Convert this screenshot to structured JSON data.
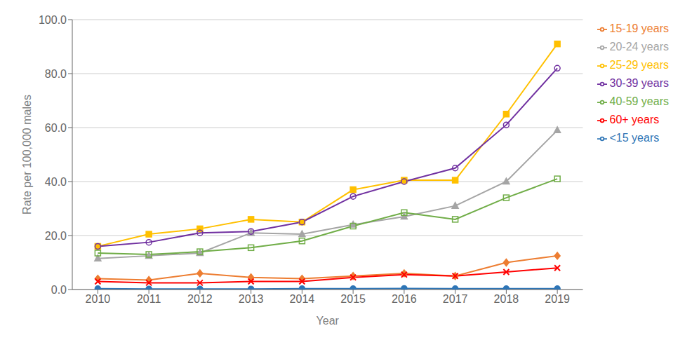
{
  "chart_data": {
    "type": "line",
    "x": [
      2010,
      2011,
      2012,
      2013,
      2014,
      2015,
      2016,
      2017,
      2018,
      2019
    ],
    "series": [
      {
        "name": "<15 years",
        "color": "#2e75b6",
        "marker": "circle",
        "values": [
          0.3,
          0.2,
          0.2,
          0.2,
          0.3,
          0.3,
          0.4,
          0.3,
          0.3,
          0.3
        ]
      },
      {
        "name": "15-19 years",
        "color": "#ed7d31",
        "marker": "diamond",
        "values": [
          4.0,
          3.5,
          6.0,
          4.5,
          4.0,
          5.0,
          6.0,
          5.0,
          10.0,
          12.5
        ]
      },
      {
        "name": "20-24 years",
        "color": "#a5a5a5",
        "marker": "triangle",
        "values": [
          11.5,
          12.5,
          13.5,
          21.0,
          20.5,
          24.0,
          27.0,
          31.0,
          40.0,
          59.0
        ]
      },
      {
        "name": "25-29 years",
        "color": "#ffc000",
        "marker": "square",
        "values": [
          16.0,
          20.5,
          22.5,
          26.0,
          25.0,
          37.0,
          40.5,
          40.5,
          65.0,
          91.0
        ]
      },
      {
        "name": "30-39 years",
        "color": "#7030a0",
        "marker": "circle_open",
        "values": [
          16.0,
          17.5,
          21.0,
          21.5,
          25.0,
          34.5,
          40.0,
          45.0,
          61.0,
          82.0
        ]
      },
      {
        "name": "40-59 years",
        "color": "#70ad47",
        "marker": "square_open",
        "values": [
          13.5,
          13.0,
          14.0,
          15.5,
          18.0,
          23.5,
          28.5,
          26.0,
          34.0,
          41.0
        ]
      },
      {
        "name": "60+ years",
        "color": "#ff0000",
        "marker": "x",
        "values": [
          3.0,
          2.5,
          2.5,
          3.0,
          3.0,
          4.5,
          5.5,
          5.0,
          6.5,
          8.0
        ]
      }
    ],
    "x_label": "Year",
    "y_label": "Rate per 100,000 males",
    "xlim": [
      2009.5,
      2019.5
    ],
    "xticks": [
      2010,
      2011,
      2012,
      2013,
      2014,
      2015,
      2016,
      2017,
      2018,
      2019
    ],
    "ylim": [
      0,
      100.0
    ],
    "yticks": [
      {
        "value": 0.0,
        "label": "0.0"
      },
      {
        "value": 20.0,
        "label": "20.0"
      },
      {
        "value": 40.0,
        "label": "40.0"
      },
      {
        "value": 60.0,
        "label": "60.0"
      },
      {
        "value": 80.0,
        "label": "80.0"
      },
      {
        "value": 100.0,
        "label": "100.0"
      }
    ],
    "grid": true,
    "legend": "right"
  }
}
